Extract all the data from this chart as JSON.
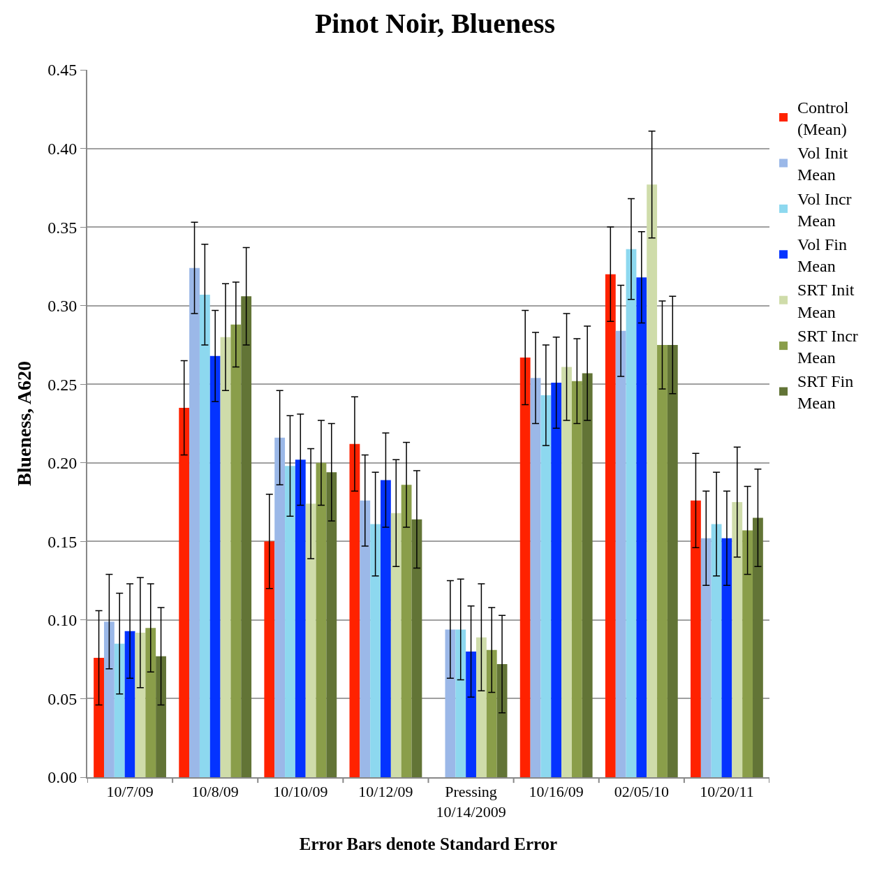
{
  "chart_data": {
    "type": "bar",
    "title": "Pinot Noir, Blueness",
    "xlabel": "Error Bars denote Standard Error",
    "ylabel": "Blueness, A620",
    "categories": [
      "10/7/09",
      "10/8/09",
      "10/10/09",
      "10/12/09",
      "Pressing 10/14/2009",
      "10/16/09",
      "02/05/10",
      "10/20/11"
    ],
    "series": [
      {
        "name": "Control (Mean)",
        "color": "#ff2200",
        "values": [
          0.076,
          0.235,
          0.15,
          0.212,
          null,
          0.267,
          0.32,
          0.176
        ],
        "errors": [
          0.03,
          0.03,
          0.03,
          0.03,
          null,
          0.03,
          0.03,
          0.03
        ]
      },
      {
        "name": "Vol Init Mean",
        "color": "#9bb8e8",
        "values": [
          0.099,
          0.324,
          0.216,
          0.176,
          0.094,
          0.254,
          0.284,
          0.152
        ],
        "errors": [
          0.03,
          0.029,
          0.03,
          0.029,
          0.031,
          0.029,
          0.029,
          0.03
        ]
      },
      {
        "name": "Vol Incr Mean",
        "color": "#8dd8ef",
        "values": [
          0.085,
          0.307,
          0.198,
          0.161,
          0.094,
          0.243,
          0.336,
          0.161
        ],
        "errors": [
          0.032,
          0.032,
          0.032,
          0.033,
          0.032,
          0.032,
          0.032,
          0.033
        ]
      },
      {
        "name": "Vol Fin Mean",
        "color": "#0433ff",
        "values": [
          0.093,
          0.268,
          0.202,
          0.189,
          0.08,
          0.251,
          0.318,
          0.152
        ],
        "errors": [
          0.03,
          0.029,
          0.029,
          0.03,
          0.029,
          0.029,
          0.029,
          0.03
        ]
      },
      {
        "name": "SRT Init Mean",
        "color": "#cfdcaa",
        "values": [
          0.092,
          0.28,
          0.174,
          0.168,
          0.089,
          0.261,
          0.377,
          0.175
        ],
        "errors": [
          0.035,
          0.034,
          0.035,
          0.034,
          0.034,
          0.034,
          0.034,
          0.035
        ]
      },
      {
        "name": "SRT Incr Mean",
        "color": "#8a9e4a",
        "values": [
          0.095,
          0.288,
          0.2,
          0.186,
          0.081,
          0.252,
          0.275,
          0.157
        ],
        "errors": [
          0.028,
          0.027,
          0.027,
          0.027,
          0.027,
          0.027,
          0.028,
          0.028
        ]
      },
      {
        "name": "SRT Fin Mean",
        "color": "#627436",
        "values": [
          0.077,
          0.306,
          0.194,
          0.164,
          0.072,
          0.257,
          0.275,
          0.165
        ],
        "errors": [
          0.031,
          0.031,
          0.031,
          0.031,
          0.031,
          0.03,
          0.031,
          0.031
        ]
      }
    ],
    "ylim": [
      0,
      0.45
    ],
    "yticks": [
      {
        "value": 0,
        "label": "0.00"
      },
      0.05,
      {
        "value": 0.1,
        "label": "0.10"
      },
      0.15,
      {
        "value": 0.2,
        "label": "0.20"
      },
      0.25,
      {
        "value": 0.3,
        "label": "0.30"
      },
      0.35,
      {
        "value": 0.4,
        "label": "0.40"
      },
      0.45
    ],
    "grid": "y",
    "legend": "right"
  }
}
